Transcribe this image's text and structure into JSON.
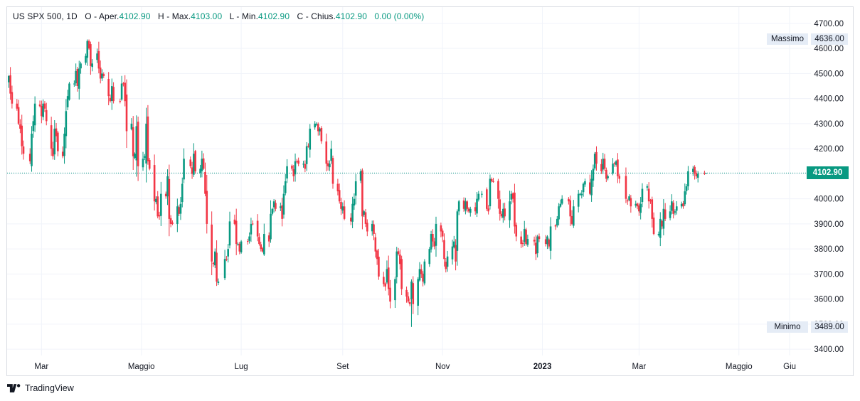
{
  "legend": {
    "symbol": "US SPX 500, 1D",
    "open_label": "O - Aper.",
    "open_value": "4102.90",
    "high_label": "H - Max.",
    "high_value": "4103.00",
    "low_label": "L - Min.",
    "low_value": "4102.90",
    "close_label": "C - Chius.",
    "close_value": "4102.90",
    "change": "0.00 (0.00%)"
  },
  "price_tags": {
    "max_label": "Massimo",
    "max_value": "4636.00",
    "min_label": "Minimo",
    "min_value": "3489.00",
    "last_value": "4102.90"
  },
  "brand": {
    "name": "TradingView",
    "logo_icon": "tradingview-logo-icon"
  },
  "colors": {
    "up": "#089981",
    "down": "#f23645",
    "grid": "#f0f3fa",
    "last_line": "#089981",
    "axis_text": "#131722"
  },
  "chart_data": {
    "type": "candlestick",
    "symbol": "US SPX 500",
    "interval": "1D",
    "y_ticks": [
      "3400.00",
      "3500.00",
      "3600.00",
      "3700.00",
      "3800.00",
      "3900.00",
      "4000.00",
      "4100.00",
      "4200.00",
      "4300.00",
      "4400.00",
      "4500.00",
      "4600.00",
      "4700.00"
    ],
    "ylim": [
      3375,
      4765
    ],
    "x_ticks": [
      {
        "label": "Mar",
        "date": "2022-03-01"
      },
      {
        "label": "Maggio",
        "date": "2022-05-01"
      },
      {
        "label": "Lug",
        "date": "2022-07-01"
      },
      {
        "label": "Set",
        "date": "2022-09-01"
      },
      {
        "label": "Nov",
        "date": "2022-11-01"
      },
      {
        "label": "2023",
        "date": "2023-01-01",
        "bold": true
      },
      {
        "label": "Mar",
        "date": "2023-03-01"
      },
      {
        "label": "Maggio",
        "date": "2023-05-01"
      },
      {
        "label": "Giu",
        "date": "2023-06-01"
      }
    ],
    "xlim": [
      "2022-02-08",
      "2023-06-14"
    ],
    "last_price": 4102.9,
    "highest": 4636.0,
    "lowest": 3489.0,
    "grid": true,
    "closes": [
      [
        "2022-02-09",
        4490
      ],
      [
        "2022-02-10",
        4420
      ],
      [
        "2022-02-11",
        4380
      ],
      [
        "2022-02-14",
        4360
      ],
      [
        "2022-02-15",
        4300
      ],
      [
        "2022-02-16",
        4280
      ],
      [
        "2022-02-17",
        4210
      ],
      [
        "2022-02-18",
        4180
      ],
      [
        "2022-02-22",
        4150
      ],
      [
        "2022-02-23",
        4260
      ],
      [
        "2022-02-24",
        4310
      ],
      [
        "2022-02-25",
        4380
      ],
      [
        "2022-02-28",
        4370
      ],
      [
        "2022-03-01",
        4330
      ],
      [
        "2022-03-02",
        4380
      ],
      [
        "2022-03-03",
        4360
      ],
      [
        "2022-03-04",
        4310
      ],
      [
        "2022-03-07",
        4200
      ],
      [
        "2022-03-08",
        4170
      ],
      [
        "2022-03-09",
        4280
      ],
      [
        "2022-03-10",
        4250
      ],
      [
        "2022-03-11",
        4190
      ],
      [
        "2022-03-14",
        4170
      ],
      [
        "2022-03-15",
        4260
      ],
      [
        "2022-03-16",
        4350
      ],
      [
        "2022-03-17",
        4410
      ],
      [
        "2022-03-18",
        4460
      ],
      [
        "2022-03-21",
        4460
      ],
      [
        "2022-03-22",
        4510
      ],
      [
        "2022-03-23",
        4450
      ],
      [
        "2022-03-24",
        4520
      ],
      [
        "2022-03-25",
        4540
      ],
      [
        "2022-03-28",
        4570
      ],
      [
        "2022-03-29",
        4630
      ],
      [
        "2022-03-30",
        4600
      ],
      [
        "2022-03-31",
        4530
      ],
      [
        "2022-04-01",
        4540
      ],
      [
        "2022-04-04",
        4580
      ],
      [
        "2022-04-05",
        4520
      ],
      [
        "2022-04-06",
        4480
      ],
      [
        "2022-04-07",
        4500
      ],
      [
        "2022-04-08",
        4490
      ],
      [
        "2022-04-11",
        4410
      ],
      [
        "2022-04-12",
        4390
      ],
      [
        "2022-04-13",
        4450
      ],
      [
        "2022-04-14",
        4390
      ],
      [
        "2022-04-18",
        4390
      ],
      [
        "2022-04-19",
        4460
      ],
      [
        "2022-04-20",
        4460
      ],
      [
        "2022-04-21",
        4390
      ],
      [
        "2022-04-22",
        4270
      ],
      [
        "2022-04-25",
        4300
      ],
      [
        "2022-04-26",
        4170
      ],
      [
        "2022-04-27",
        4180
      ],
      [
        "2022-04-28",
        4290
      ],
      [
        "2022-04-29",
        4130
      ],
      [
        "2022-05-02",
        4160
      ],
      [
        "2022-05-03",
        4170
      ],
      [
        "2022-05-04",
        4300
      ],
      [
        "2022-05-05",
        4150
      ],
      [
        "2022-05-06",
        4120
      ],
      [
        "2022-05-09",
        3990
      ],
      [
        "2022-05-10",
        4000
      ],
      [
        "2022-05-11",
        3930
      ],
      [
        "2022-05-12",
        3930
      ],
      [
        "2022-05-13",
        4020
      ],
      [
        "2022-05-16",
        4010
      ],
      [
        "2022-05-17",
        4090
      ],
      [
        "2022-05-18",
        3920
      ],
      [
        "2022-05-19",
        3900
      ],
      [
        "2022-05-20",
        3900
      ],
      [
        "2022-05-23",
        3970
      ],
      [
        "2022-05-24",
        3940
      ],
      [
        "2022-05-25",
        3980
      ],
      [
        "2022-05-26",
        4060
      ],
      [
        "2022-05-27",
        4160
      ],
      [
        "2022-05-31",
        4130
      ],
      [
        "2022-06-01",
        4100
      ],
      [
        "2022-06-02",
        4180
      ],
      [
        "2022-06-03",
        4110
      ],
      [
        "2022-06-06",
        4120
      ],
      [
        "2022-06-07",
        4160
      ],
      [
        "2022-06-08",
        4120
      ],
      [
        "2022-06-09",
        4020
      ],
      [
        "2022-06-10",
        3900
      ],
      [
        "2022-06-13",
        3750
      ],
      [
        "2022-06-14",
        3740
      ],
      [
        "2022-06-15",
        3790
      ],
      [
        "2022-06-16",
        3670
      ],
      [
        "2022-06-17",
        3670
      ],
      [
        "2022-06-21",
        3760
      ],
      [
        "2022-06-22",
        3760
      ],
      [
        "2022-06-23",
        3800
      ],
      [
        "2022-06-24",
        3910
      ],
      [
        "2022-06-27",
        3900
      ],
      [
        "2022-06-28",
        3820
      ],
      [
        "2022-06-29",
        3820
      ],
      [
        "2022-06-30",
        3790
      ],
      [
        "2022-07-01",
        3830
      ],
      [
        "2022-07-05",
        3830
      ],
      [
        "2022-07-06",
        3850
      ],
      [
        "2022-07-07",
        3900
      ],
      [
        "2022-07-08",
        3900
      ],
      [
        "2022-07-11",
        3850
      ],
      [
        "2022-07-12",
        3820
      ],
      [
        "2022-07-13",
        3800
      ],
      [
        "2022-07-14",
        3790
      ],
      [
        "2022-07-15",
        3860
      ],
      [
        "2022-07-18",
        3830
      ],
      [
        "2022-07-19",
        3940
      ],
      [
        "2022-07-20",
        3960
      ],
      [
        "2022-07-21",
        3990
      ],
      [
        "2022-07-22",
        3960
      ],
      [
        "2022-07-25",
        3970
      ],
      [
        "2022-07-26",
        3920
      ],
      [
        "2022-07-27",
        4020
      ],
      [
        "2022-07-28",
        4070
      ],
      [
        "2022-07-29",
        4130
      ],
      [
        "2022-08-01",
        4120
      ],
      [
        "2022-08-02",
        4090
      ],
      [
        "2022-08-03",
        4150
      ],
      [
        "2022-08-04",
        4150
      ],
      [
        "2022-08-05",
        4140
      ],
      [
        "2022-08-08",
        4140
      ],
      [
        "2022-08-09",
        4120
      ],
      [
        "2022-08-10",
        4210
      ],
      [
        "2022-08-11",
        4210
      ],
      [
        "2022-08-12",
        4280
      ],
      [
        "2022-08-15",
        4300
      ],
      [
        "2022-08-16",
        4300
      ],
      [
        "2022-08-17",
        4270
      ],
      [
        "2022-08-18",
        4280
      ],
      [
        "2022-08-19",
        4230
      ],
      [
        "2022-08-22",
        4140
      ],
      [
        "2022-08-23",
        4130
      ],
      [
        "2022-08-24",
        4140
      ],
      [
        "2022-08-25",
        4200
      ],
      [
        "2022-08-26",
        4060
      ],
      [
        "2022-08-29",
        4030
      ],
      [
        "2022-08-30",
        3990
      ],
      [
        "2022-08-31",
        3960
      ],
      [
        "2022-09-01",
        3970
      ],
      [
        "2022-09-02",
        3920
      ],
      [
        "2022-09-06",
        3910
      ],
      [
        "2022-09-07",
        3980
      ],
      [
        "2022-09-08",
        4000
      ],
      [
        "2022-09-09",
        4070
      ],
      [
        "2022-09-12",
        4110
      ],
      [
        "2022-09-13",
        3930
      ],
      [
        "2022-09-14",
        3950
      ],
      [
        "2022-09-15",
        3900
      ],
      [
        "2022-09-16",
        3870
      ],
      [
        "2022-09-19",
        3900
      ],
      [
        "2022-09-20",
        3860
      ],
      [
        "2022-09-21",
        3790
      ],
      [
        "2022-09-22",
        3760
      ],
      [
        "2022-09-23",
        3690
      ],
      [
        "2022-09-26",
        3660
      ],
      [
        "2022-09-27",
        3650
      ],
      [
        "2022-09-28",
        3720
      ],
      [
        "2022-09-29",
        3640
      ],
      [
        "2022-09-30",
        3590
      ],
      [
        "2022-10-03",
        3680
      ],
      [
        "2022-10-04",
        3790
      ],
      [
        "2022-10-05",
        3780
      ],
      [
        "2022-10-06",
        3740
      ],
      [
        "2022-10-07",
        3640
      ],
      [
        "2022-10-10",
        3610
      ],
      [
        "2022-10-11",
        3590
      ],
      [
        "2022-10-12",
        3580
      ],
      [
        "2022-10-13",
        3670
      ],
      [
        "2022-10-14",
        3580
      ],
      [
        "2022-10-17",
        3680
      ],
      [
        "2022-10-18",
        3720
      ],
      [
        "2022-10-19",
        3700
      ],
      [
        "2022-10-20",
        3670
      ],
      [
        "2022-10-21",
        3750
      ],
      [
        "2022-10-24",
        3800
      ],
      [
        "2022-10-25",
        3860
      ],
      [
        "2022-10-26",
        3830
      ],
      [
        "2022-10-27",
        3810
      ],
      [
        "2022-10-28",
        3900
      ],
      [
        "2022-10-31",
        3870
      ],
      [
        "2022-11-01",
        3850
      ],
      [
        "2022-11-02",
        3760
      ],
      [
        "2022-11-03",
        3720
      ],
      [
        "2022-11-04",
        3770
      ],
      [
        "2022-11-07",
        3810
      ],
      [
        "2022-11-08",
        3830
      ],
      [
        "2022-11-09",
        3750
      ],
      [
        "2022-11-10",
        3950
      ],
      [
        "2022-11-11",
        3990
      ],
      [
        "2022-11-14",
        3960
      ],
      [
        "2022-11-15",
        3990
      ],
      [
        "2022-11-16",
        3960
      ],
      [
        "2022-11-17",
        3950
      ],
      [
        "2022-11-18",
        3960
      ],
      [
        "2022-11-21",
        3950
      ],
      [
        "2022-11-22",
        4000
      ],
      [
        "2022-11-23",
        4020
      ],
      [
        "2022-11-25",
        4020
      ],
      [
        "2022-11-28",
        3960
      ],
      [
        "2022-11-29",
        3950
      ],
      [
        "2022-11-30",
        4080
      ],
      [
        "2022-12-01",
        4070
      ],
      [
        "2022-12-02",
        4070
      ],
      [
        "2022-12-05",
        4000
      ],
      [
        "2022-12-06",
        3940
      ],
      [
        "2022-12-07",
        3930
      ],
      [
        "2022-12-08",
        3960
      ],
      [
        "2022-12-09",
        3930
      ],
      [
        "2022-12-12",
        3990
      ],
      [
        "2022-12-13",
        4020
      ],
      [
        "2022-12-14",
        4000
      ],
      [
        "2022-12-15",
        3890
      ],
      [
        "2022-12-16",
        3850
      ],
      [
        "2022-12-19",
        3820
      ],
      [
        "2022-12-20",
        3820
      ],
      [
        "2022-12-21",
        3880
      ],
      [
        "2022-12-22",
        3820
      ],
      [
        "2022-12-23",
        3840
      ],
      [
        "2022-12-27",
        3830
      ],
      [
        "2022-12-28",
        3780
      ],
      [
        "2022-12-29",
        3850
      ],
      [
        "2022-12-30",
        3840
      ],
      [
        "2023-01-03",
        3820
      ],
      [
        "2023-01-04",
        3850
      ],
      [
        "2023-01-05",
        3810
      ],
      [
        "2023-01-06",
        3890
      ],
      [
        "2023-01-09",
        3890
      ],
      [
        "2023-01-10",
        3920
      ],
      [
        "2023-01-11",
        3970
      ],
      [
        "2023-01-12",
        3980
      ],
      [
        "2023-01-13",
        4000
      ],
      [
        "2023-01-17",
        3990
      ],
      [
        "2023-01-18",
        3930
      ],
      [
        "2023-01-19",
        3900
      ],
      [
        "2023-01-20",
        3970
      ],
      [
        "2023-01-23",
        4020
      ],
      [
        "2023-01-24",
        4020
      ],
      [
        "2023-01-25",
        4020
      ],
      [
        "2023-01-26",
        4060
      ],
      [
        "2023-01-27",
        4070
      ],
      [
        "2023-01-30",
        4020
      ],
      [
        "2023-01-31",
        4080
      ],
      [
        "2023-02-01",
        4120
      ],
      [
        "2023-02-02",
        4180
      ],
      [
        "2023-02-03",
        4140
      ],
      [
        "2023-02-06",
        4110
      ],
      [
        "2023-02-07",
        4160
      ],
      [
        "2023-02-08",
        4120
      ],
      [
        "2023-02-09",
        4080
      ],
      [
        "2023-02-10",
        4090
      ],
      [
        "2023-02-13",
        4140
      ],
      [
        "2023-02-14",
        4140
      ],
      [
        "2023-02-15",
        4150
      ],
      [
        "2023-02-16",
        4090
      ],
      [
        "2023-02-17",
        4080
      ],
      [
        "2023-02-21",
        4000
      ],
      [
        "2023-02-22",
        3990
      ],
      [
        "2023-02-23",
        4010
      ],
      [
        "2023-02-24",
        3970
      ],
      [
        "2023-02-27",
        3980
      ],
      [
        "2023-02-28",
        3970
      ],
      [
        "2023-03-01",
        3950
      ],
      [
        "2023-03-02",
        3980
      ],
      [
        "2023-03-03",
        4040
      ],
      [
        "2023-03-06",
        4050
      ],
      [
        "2023-03-07",
        3990
      ],
      [
        "2023-03-08",
        3990
      ],
      [
        "2023-03-09",
        3920
      ],
      [
        "2023-03-10",
        3860
      ],
      [
        "2023-03-13",
        3860
      ],
      [
        "2023-03-14",
        3920
      ],
      [
        "2023-03-15",
        3890
      ],
      [
        "2023-03-16",
        3960
      ],
      [
        "2023-03-17",
        3920
      ],
      [
        "2023-03-20",
        3950
      ],
      [
        "2023-03-21",
        3990
      ],
      [
        "2023-03-22",
        3940
      ],
      [
        "2023-03-23",
        3950
      ],
      [
        "2023-03-24",
        3970
      ],
      [
        "2023-03-27",
        3980
      ],
      [
        "2023-03-28",
        3970
      ],
      [
        "2023-03-29",
        4030
      ],
      [
        "2023-03-30",
        4050
      ],
      [
        "2023-03-31",
        4110
      ],
      [
        "2023-04-03",
        4120
      ],
      [
        "2023-04-04",
        4100
      ],
      [
        "2023-04-05",
        4090
      ],
      [
        "2023-04-06",
        4100
      ],
      [
        "2023-04-10",
        4100
      ],
      [
        "2023-04-11",
        4102.9
      ]
    ]
  }
}
